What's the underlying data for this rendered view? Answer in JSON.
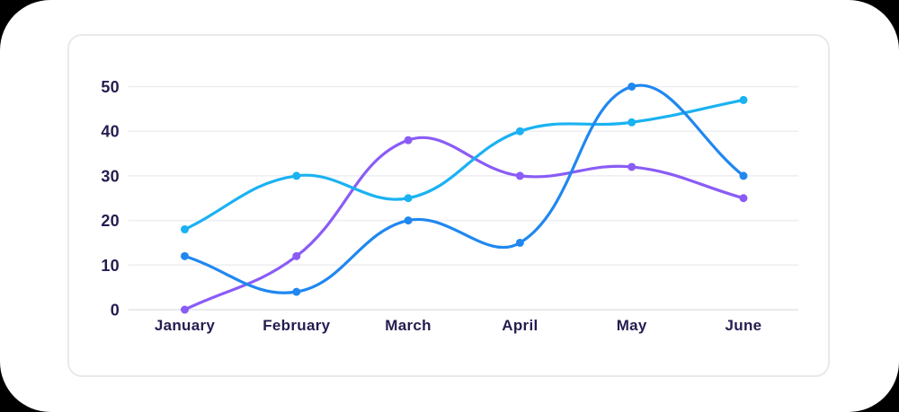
{
  "chart_data": {
    "type": "line",
    "title": "",
    "categories": [
      "January",
      "February",
      "March",
      "April",
      "May",
      "June"
    ],
    "series": [
      {
        "id": "purple",
        "color": "#8a5cf6",
        "values": [
          0,
          12,
          38,
          30,
          32,
          25
        ]
      },
      {
        "id": "cyan",
        "color": "#1ab2f2",
        "values": [
          18,
          30,
          25,
          40,
          42,
          47
        ]
      },
      {
        "id": "blue",
        "color": "#2087f0",
        "values": [
          12,
          4,
          20,
          15,
          50,
          30
        ]
      }
    ],
    "yticks": [
      0,
      10,
      20,
      30,
      40,
      50
    ],
    "ylim": [
      0,
      50
    ],
    "grid": true,
    "legend": false,
    "line_tension": 0.4
  },
  "colors": {
    "background": "#ffffff",
    "card_border": "#e9e9ed",
    "gridline": "#ededf2",
    "axis_line": "#e2e2e9",
    "tick_text": "#241d4f"
  }
}
